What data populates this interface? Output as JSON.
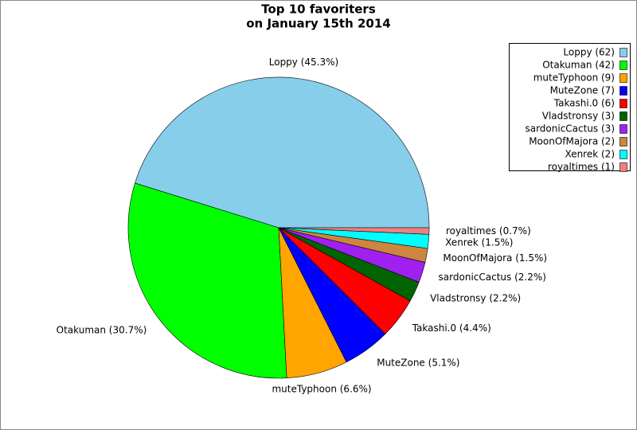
{
  "chart_data": {
    "type": "pie",
    "title": [
      "Top 10 favoriters",
      "on January 15th 2014"
    ],
    "values": [
      45.3,
      30.7,
      6.6,
      5.1,
      4.4,
      2.2,
      2.2,
      1.5,
      1.5,
      0.7
    ],
    "value_labels": [
      "Loppy (45.3%)",
      "Otakuman (30.7%)",
      "muteTyphoon (6.6%)",
      "MuteZone (5.1%)",
      "Takashi.0 (4.4%)",
      "Vladstronsy (2.2%)",
      "sardonicCactus (2.2%)",
      "MoonOfMajora (1.5%)",
      "Xenrek (1.5%)",
      "royaltimes (0.7%)"
    ],
    "legend_labels": [
      "Loppy (62)",
      "Otakuman (42)",
      "muteTyphoon (9)",
      "MuteZone (7)",
      "Takashi.0 (6)",
      "Vladstronsy (3)",
      "sardonicCactus (3)",
      "MoonOfMajora (2)",
      "Xenrek (2)",
      "royaltimes (1)"
    ],
    "colors": [
      "#87ceeb",
      "#00ff00",
      "#ffa500",
      "#0000ff",
      "#ff0000",
      "#006400",
      "#a020f0",
      "#cd853f",
      "#00ffff",
      "#f08080"
    ],
    "legend": "upper right"
  }
}
